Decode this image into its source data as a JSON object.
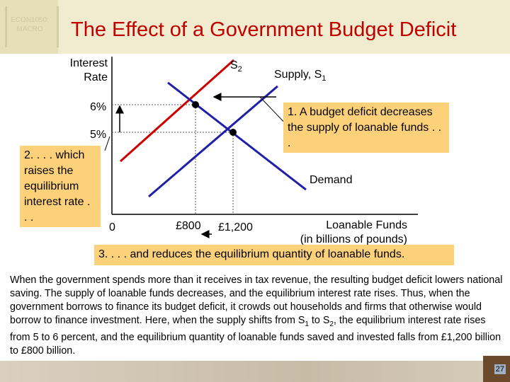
{
  "header": {
    "logo_text": [
      "ECON1050:",
      "MACRO"
    ],
    "title": "The Effect of a Government Budget Deficit"
  },
  "chart_data": {
    "type": "line",
    "ylabel": [
      "Interest",
      "Rate"
    ],
    "xlabel": [
      "Loanable Funds",
      "(in billions of pounds)"
    ],
    "origin_label": "0",
    "y_ticks": [
      {
        "value": 6,
        "label": "6%"
      },
      {
        "value": 5,
        "label": "5%"
      }
    ],
    "x_ticks": [
      {
        "value": 800,
        "label": "£800"
      },
      {
        "value": 1200,
        "label": "£1,200"
      }
    ],
    "xlim": [
      -90,
      3170
    ],
    "ylim": [
      2.03,
      7.74
    ],
    "series": [
      {
        "name": "Supply, S1",
        "label_main": "Supply, S",
        "label_sub": "1",
        "color": "#1f1fa8",
        "points": [
          [
            302,
            2.67
          ],
          [
            1675,
            6.67
          ]
        ]
      },
      {
        "name": "S2",
        "label_main": "S",
        "label_sub": "2",
        "color": "#cc0000",
        "points": [
          [
            0,
            3.95
          ],
          [
            1208,
            7.62
          ]
        ]
      },
      {
        "name": "Demand",
        "label_main": "Demand",
        "label_sub": "",
        "color": "#1f1fa8",
        "points": [
          [
            506,
            6.8
          ],
          [
            1977,
            2.92
          ]
        ]
      }
    ],
    "equilibria": [
      [
        1200,
        5
      ],
      [
        800,
        6
      ]
    ]
  },
  "annotations": {
    "a1": "1. A budget deficit decreases the supply of loanable funds . . .",
    "a2": "2. . . . which raises the equilibrium interest rate . . .",
    "a3": "3. . . . and reduces the equilibrium quantity of loanable funds."
  },
  "paragraph": {
    "p1": "When the government spends more than it receives in tax revenue, the resulting budget deficit lowers national saving. The supply of loanable funds decreases, and the equilibrium interest rate rises. Thus, when the government borrows to finance its budget deficit, it crowds out households and firms that otherwise would borrow to finance investment. Here, when the supply shifts from S",
    "s1": "1",
    "p2": " to S",
    "s2": "2",
    "p3": ", the equilibrium interest rate rises from 5 to 6 percent, and the equilibrium quantity of loanable funds saved and invested falls from £1,200 billion to £800 billion."
  },
  "footer": {
    "page_number": "27"
  }
}
